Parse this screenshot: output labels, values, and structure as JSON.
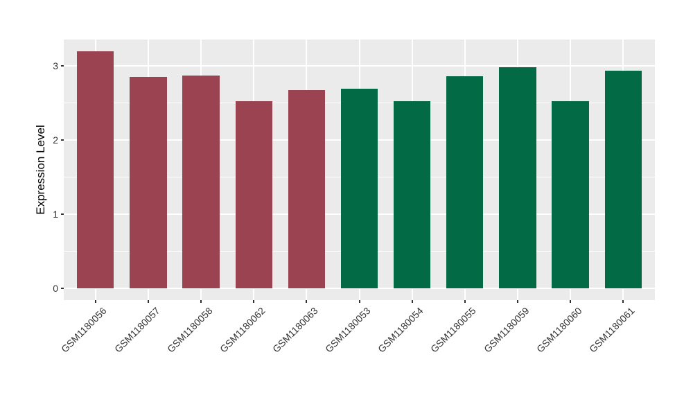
{
  "chart_data": {
    "type": "bar",
    "title": "",
    "xlabel": "",
    "ylabel": "Expression Level",
    "categories": [
      "GSM1180056",
      "GSM1180057",
      "GSM1180058",
      "GSM1180062",
      "GSM1180063",
      "GSM1180053",
      "GSM1180054",
      "GSM1180055",
      "GSM1180059",
      "GSM1180060",
      "GSM1180061"
    ],
    "values": [
      3.2,
      2.85,
      2.87,
      2.53,
      2.68,
      2.7,
      2.53,
      2.86,
      2.99,
      2.53,
      2.94
    ],
    "bar_colors": [
      "#9C4351",
      "#9C4351",
      "#9C4351",
      "#9C4351",
      "#9C4351",
      "#026A45",
      "#026A45",
      "#026A45",
      "#026A45",
      "#026A45",
      "#026A45"
    ],
    "groups": [
      {
        "color": "#9C4351",
        "members": [
          "GSM1180056",
          "GSM1180057",
          "GSM1180058",
          "GSM1180062",
          "GSM1180063"
        ]
      },
      {
        "color": "#026A45",
        "members": [
          "GSM1180053",
          "GSM1180054",
          "GSM1180055",
          "GSM1180059",
          "GSM1180060",
          "GSM1180061"
        ]
      }
    ],
    "ylim": [
      -0.16,
      3.36
    ],
    "yticks": [
      0,
      1,
      2,
      3
    ],
    "ytick_labels": [
      "0",
      "1",
      "2",
      "3"
    ],
    "yticks_minor": [
      0.5,
      1.5,
      2.5
    ],
    "grid": true,
    "legend_position": "none",
    "colors": {
      "panel_bg": "#EBEBEB",
      "grid": "#FFFFFF",
      "page_bg": "#FFFFFF",
      "tick_text": "#333333",
      "axis_title": "#000000",
      "tick_mark": "#333333"
    }
  }
}
